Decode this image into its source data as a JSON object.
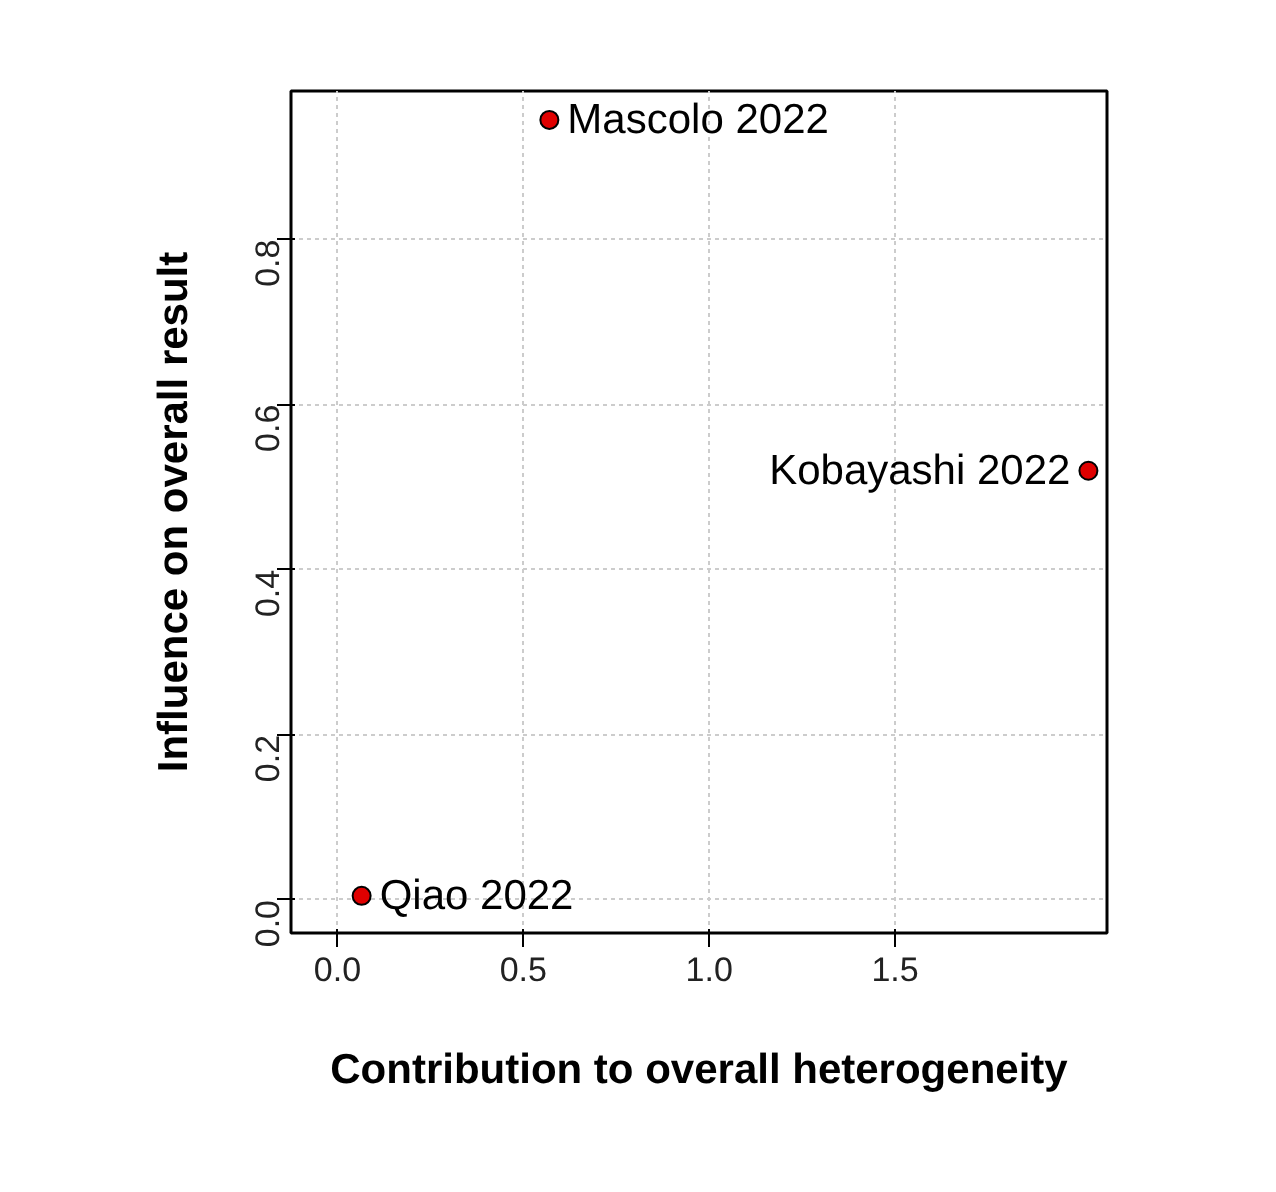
{
  "chart_data": {
    "type": "scatter",
    "xlabel": "Contribution to overall heterogeneity",
    "ylabel": "Influence on overall result",
    "x": [
      0.065,
      0.57,
      2.02
    ],
    "series": [
      {
        "color": "#e00000",
        "values": [
          0.005,
          0.945,
          0.52
        ]
      }
    ],
    "annotations": [
      {
        "text": "Qiao 2022",
        "x": 0.065,
        "y": 0.005
      },
      {
        "text": "Mascolo 2022",
        "x": 0.57,
        "y": 0.945
      },
      {
        "text": "Kobayashi 2022",
        "x": 2.02,
        "y": 0.52
      }
    ],
    "xlim": [
      -0.125,
      2.07
    ],
    "ylim": [
      -0.04,
      0.98
    ],
    "xticks": [
      {
        "value": 0,
        "label": "0.0"
      },
      0.5,
      {
        "value": 1,
        "label": "1.0"
      },
      1.5
    ],
    "yticks": [
      {
        "value": 0,
        "label": "0.0"
      },
      0.2,
      0.4,
      0.6,
      0.8
    ],
    "grid": true,
    "marker": "circle"
  }
}
